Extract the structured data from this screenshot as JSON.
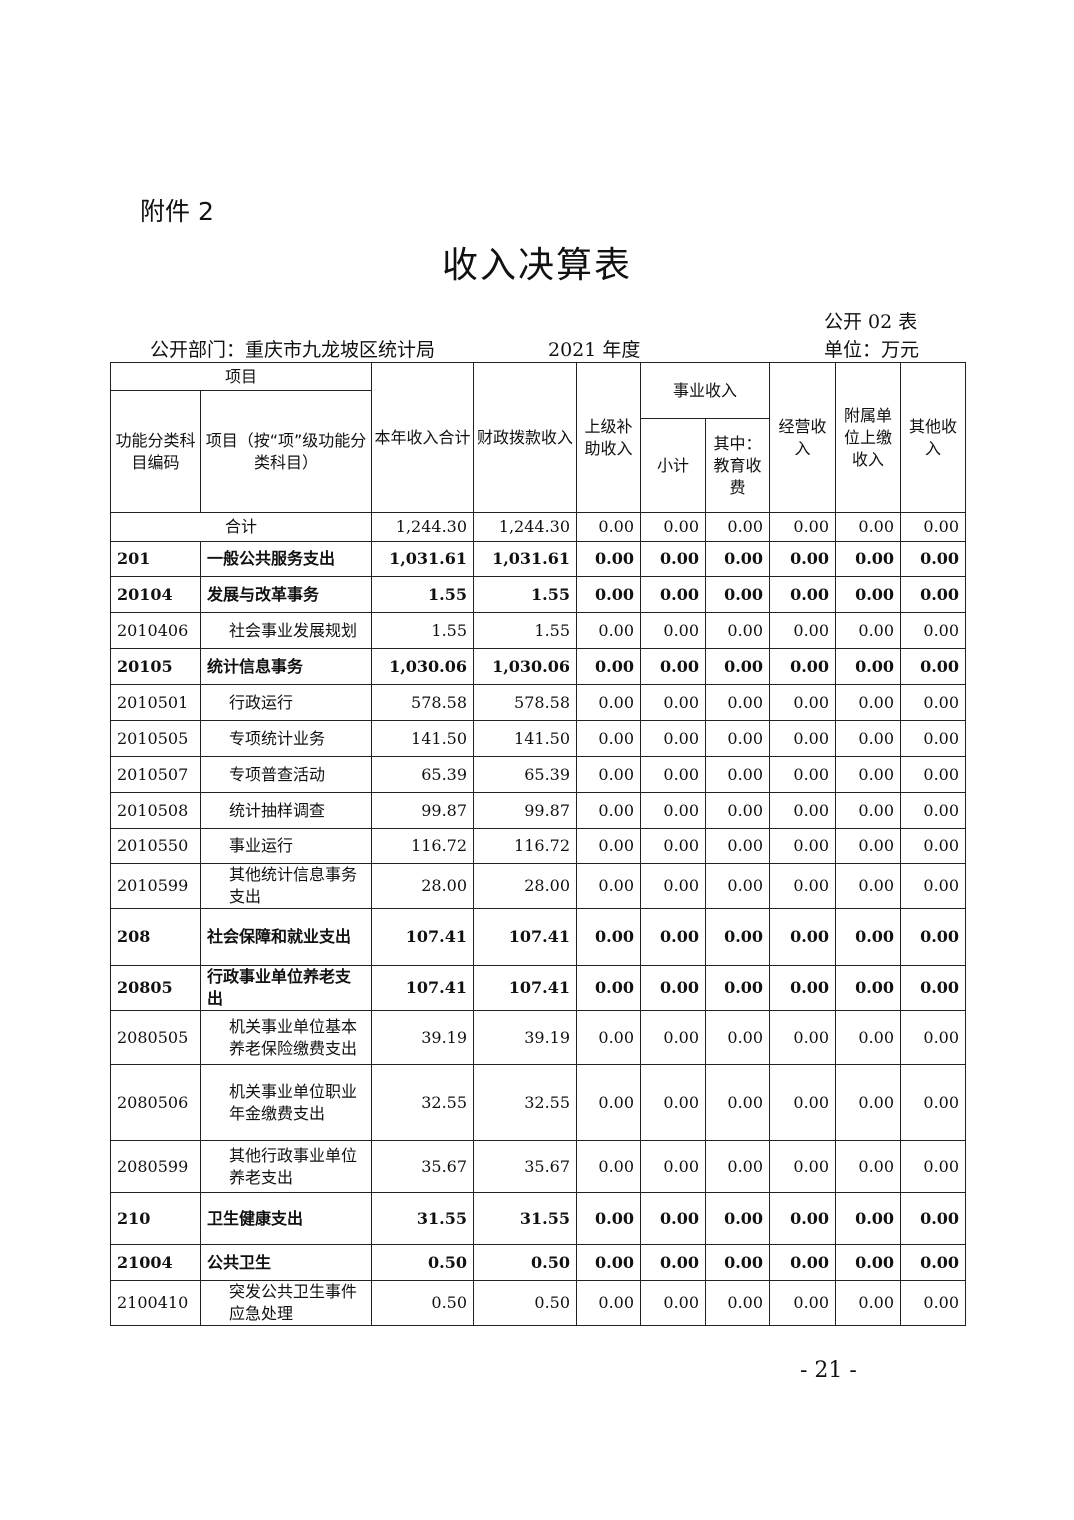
{
  "attachment": "附件 2",
  "title": "收入决算表",
  "table_no": "公开 02 表",
  "department": "公开部门：重庆市九龙坡区统计局",
  "year": "2021 年度",
  "unit": "单位：万元",
  "headers": {
    "item": "项目",
    "code": "功能分类科目编码",
    "item_name": "项目（按“项”级功能分类科目）",
    "total": "本年收入合计",
    "fiscal": "财政拨款收入",
    "superior": "上级补助收入",
    "business": "事业收入",
    "subtotal": "小计",
    "education": "其中：教育收费",
    "operating": "经营收入",
    "affiliate": "附属单位上缴收入",
    "other": "其他收入"
  },
  "total_row": {
    "label": "合计",
    "values": [
      "1,244.30",
      "1,244.30",
      "0.00",
      "0.00",
      "0.00",
      "0.00",
      "0.00",
      "0.00"
    ]
  },
  "rows": [
    {
      "code": "201",
      "name": "一般公共服务支出",
      "bold": true,
      "values": [
        "1,031.61",
        "1,031.61",
        "0.00",
        "0.00",
        "0.00",
        "0.00",
        "0.00",
        "0.00"
      ]
    },
    {
      "code": "20104",
      "name": "发展与改革事务",
      "bold": true,
      "values": [
        "1.55",
        "1.55",
        "0.00",
        "0.00",
        "0.00",
        "0.00",
        "0.00",
        "0.00"
      ]
    },
    {
      "code": "2010406",
      "name": "社会事业发展规划",
      "values": [
        "1.55",
        "1.55",
        "0.00",
        "0.00",
        "0.00",
        "0.00",
        "0.00",
        "0.00"
      ]
    },
    {
      "code": "20105",
      "name": "统计信息事务",
      "bold": true,
      "values": [
        "1,030.06",
        "1,030.06",
        "0.00",
        "0.00",
        "0.00",
        "0.00",
        "0.00",
        "0.00"
      ]
    },
    {
      "code": "2010501",
      "name": "行政运行",
      "values": [
        "578.58",
        "578.58",
        "0.00",
        "0.00",
        "0.00",
        "0.00",
        "0.00",
        "0.00"
      ]
    },
    {
      "code": "2010505",
      "name": "专项统计业务",
      "values": [
        "141.50",
        "141.50",
        "0.00",
        "0.00",
        "0.00",
        "0.00",
        "0.00",
        "0.00"
      ]
    },
    {
      "code": "2010507",
      "name": "专项普查活动",
      "values": [
        "65.39",
        "65.39",
        "0.00",
        "0.00",
        "0.00",
        "0.00",
        "0.00",
        "0.00"
      ]
    },
    {
      "code": "2010508",
      "name": "统计抽样调查",
      "values": [
        "99.87",
        "99.87",
        "0.00",
        "0.00",
        "0.00",
        "0.00",
        "0.00",
        "0.00"
      ]
    },
    {
      "code": "2010550",
      "name": "事业运行",
      "values": [
        "116.72",
        "116.72",
        "0.00",
        "0.00",
        "0.00",
        "0.00",
        "0.00",
        "0.00"
      ]
    },
    {
      "code": "2010599",
      "name": "其他统计信息事务支出",
      "values": [
        "28.00",
        "28.00",
        "0.00",
        "0.00",
        "0.00",
        "0.00",
        "0.00",
        "0.00"
      ]
    },
    {
      "code": "208",
      "name": "社会保障和就业支出",
      "bold": true,
      "values": [
        "107.41",
        "107.41",
        "0.00",
        "0.00",
        "0.00",
        "0.00",
        "0.00",
        "0.00"
      ]
    },
    {
      "code": "20805",
      "name": "行政事业单位养老支出",
      "bold": true,
      "values": [
        "107.41",
        "107.41",
        "0.00",
        "0.00",
        "0.00",
        "0.00",
        "0.00",
        "0.00"
      ]
    },
    {
      "code": "2080505",
      "name": "机关事业单位基本养老保险缴费支出",
      "values": [
        "39.19",
        "39.19",
        "0.00",
        "0.00",
        "0.00",
        "0.00",
        "0.00",
        "0.00"
      ]
    },
    {
      "code": "2080506",
      "name": "机关事业单位职业年金缴费支出",
      "values": [
        "32.55",
        "32.55",
        "0.00",
        "0.00",
        "0.00",
        "0.00",
        "0.00",
        "0.00"
      ]
    },
    {
      "code": "2080599",
      "name": "其他行政事业单位养老支出",
      "values": [
        "35.67",
        "35.67",
        "0.00",
        "0.00",
        "0.00",
        "0.00",
        "0.00",
        "0.00"
      ]
    },
    {
      "code": "210",
      "name": "卫生健康支出",
      "bold": true,
      "values": [
        "31.55",
        "31.55",
        "0.00",
        "0.00",
        "0.00",
        "0.00",
        "0.00",
        "0.00"
      ]
    },
    {
      "code": "21004",
      "name": "公共卫生",
      "bold": true,
      "values": [
        "0.50",
        "0.50",
        "0.00",
        "0.00",
        "0.00",
        "0.00",
        "0.00",
        "0.00"
      ]
    },
    {
      "code": "2100410",
      "name": "突发公共卫生事件应急处理",
      "values": [
        "0.50",
        "0.50",
        "0.00",
        "0.00",
        "0.00",
        "0.00",
        "0.00",
        "0.00"
      ]
    }
  ],
  "page_number": "- 21 -"
}
